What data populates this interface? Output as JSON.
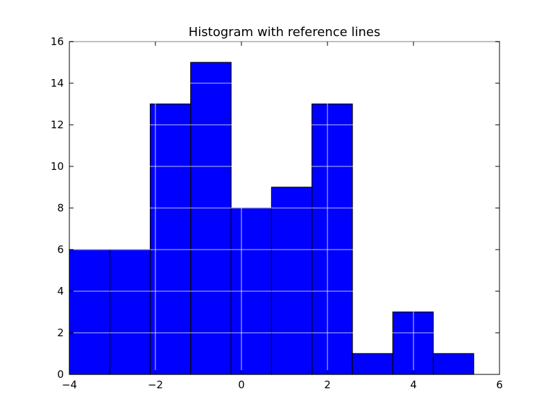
{
  "chart_data": {
    "type": "bar",
    "title": "Histogram with reference lines",
    "xlabel": "",
    "ylabel": "",
    "xlim": [
      -4,
      6
    ],
    "ylim": [
      0,
      16
    ],
    "grid": true,
    "bin_edges": [
      -4.0,
      -3.06,
      -2.12,
      -1.18,
      -0.24,
      0.7,
      1.64,
      2.58,
      3.52,
      4.46,
      5.4
    ],
    "values": [
      6,
      6,
      13,
      15,
      8,
      9,
      13,
      1,
      3,
      1
    ],
    "bar_color": "#0000ff",
    "edge_color": "#000000",
    "x_ticks": [
      -4,
      -2,
      0,
      2,
      4,
      6
    ],
    "x_tick_labels": [
      "−4",
      "−2",
      "0",
      "2",
      "4",
      "6"
    ],
    "y_ticks": [
      0,
      2,
      4,
      6,
      8,
      10,
      12,
      14,
      16
    ],
    "y_tick_labels": [
      "0",
      "2",
      "4",
      "6",
      "8",
      "10",
      "12",
      "14",
      "16"
    ]
  }
}
